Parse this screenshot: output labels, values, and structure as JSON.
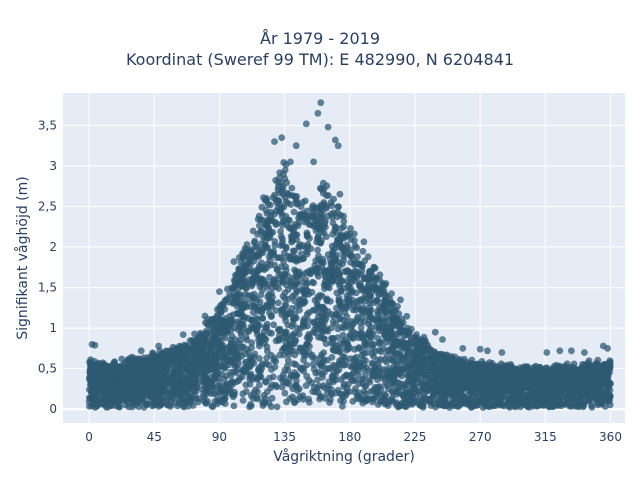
{
  "chart_data": {
    "type": "scatter",
    "title_lines": [
      "År 1979 - 2019",
      "Koordinat (Sweref 99 TM): E 482990, N 6204841"
    ],
    "xlabel": "Vågriktning (grader)",
    "ylabel": "Signifikant våghöjd (m)",
    "xlim": [
      -18,
      370
    ],
    "ylim": [
      -0.17,
      3.9
    ],
    "x_ticks": [
      0,
      45,
      90,
      135,
      180,
      225,
      270,
      315,
      360
    ],
    "x_tick_labels": [
      "0",
      "45",
      "90",
      "135",
      "180",
      "225",
      "270",
      "315",
      "360"
    ],
    "y_ticks": [
      0,
      0.5,
      1,
      1.5,
      2,
      2.5,
      3,
      3.5
    ],
    "y_tick_labels": [
      "0",
      "0,5",
      "1",
      "1,5",
      "2",
      "2,5",
      "3",
      "3,5"
    ],
    "grid": true,
    "legend": "none",
    "marker_color": "#2f5a73",
    "plot_bg": "#e5ecf6",
    "envelope": {
      "description_points_x": [
        0,
        10,
        20,
        30,
        45,
        60,
        75,
        90,
        100,
        110,
        120,
        130,
        135,
        140,
        145,
        150,
        160,
        170,
        180,
        190,
        200,
        210,
        225,
        240,
        255,
        270,
        285,
        300,
        315,
        330,
        345,
        360
      ],
      "upper_y": [
        0.65,
        0.6,
        0.62,
        0.66,
        0.72,
        0.8,
        0.98,
        1.3,
        1.75,
        2.2,
        2.7,
        3.1,
        3.2,
        2.95,
        2.7,
        2.75,
        2.9,
        2.8,
        2.45,
        2.1,
        1.75,
        1.45,
        1.0,
        0.75,
        0.66,
        0.62,
        0.58,
        0.55,
        0.55,
        0.58,
        0.6,
        0.62
      ]
    },
    "outliers": [
      {
        "x": 160,
        "y": 3.78
      },
      {
        "x": 158,
        "y": 3.65
      },
      {
        "x": 150,
        "y": 3.52
      },
      {
        "x": 165,
        "y": 3.48
      },
      {
        "x": 170,
        "y": 3.32
      },
      {
        "x": 128,
        "y": 3.3
      },
      {
        "x": 133,
        "y": 3.35
      },
      {
        "x": 143,
        "y": 3.25
      },
      {
        "x": 139,
        "y": 3.05
      },
      {
        "x": 172,
        "y": 3.25
      },
      {
        "x": 155,
        "y": 3.05
      },
      {
        "x": 2,
        "y": 0.8
      },
      {
        "x": 4,
        "y": 0.79
      },
      {
        "x": 48,
        "y": 0.78
      },
      {
        "x": 36,
        "y": 0.72
      },
      {
        "x": 239,
        "y": 0.95
      },
      {
        "x": 244,
        "y": 0.86
      },
      {
        "x": 258,
        "y": 0.75
      },
      {
        "x": 270,
        "y": 0.74
      },
      {
        "x": 275,
        "y": 0.72
      },
      {
        "x": 285,
        "y": 0.7
      },
      {
        "x": 316,
        "y": 0.7
      },
      {
        "x": 325,
        "y": 0.72
      },
      {
        "x": 333,
        "y": 0.72
      },
      {
        "x": 342,
        "y": 0.7
      },
      {
        "x": 355,
        "y": 0.78
      },
      {
        "x": 358,
        "y": 0.75
      },
      {
        "x": 215,
        "y": 1.35
      },
      {
        "x": 205,
        "y": 1.55
      },
      {
        "x": 100,
        "y": 1.82
      },
      {
        "x": 90,
        "y": 1.45
      },
      {
        "x": 80,
        "y": 1.15
      },
      {
        "x": 65,
        "y": 0.92
      }
    ]
  }
}
